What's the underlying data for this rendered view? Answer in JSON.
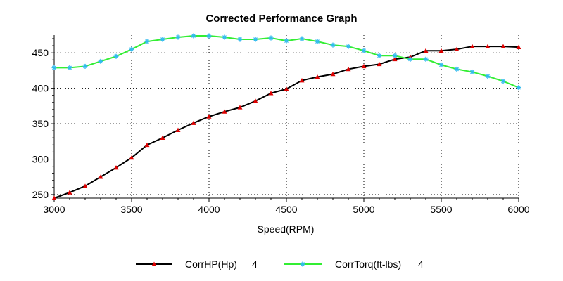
{
  "chart_data": {
    "type": "line",
    "title": "Corrected Performance Graph",
    "xlabel": "Speed(RPM)",
    "ylabel": "",
    "xlim": [
      3000,
      6000
    ],
    "ylim": [
      245,
      475
    ],
    "x_ticks": [
      3000,
      3500,
      4000,
      4500,
      5000,
      5500,
      6000
    ],
    "y_ticks": [
      250,
      300,
      350,
      400,
      450
    ],
    "grid": true,
    "legend_position": "bottom",
    "x": [
      3000,
      3100,
      3200,
      3300,
      3400,
      3500,
      3600,
      3700,
      3800,
      3900,
      4000,
      4100,
      4200,
      4300,
      4400,
      4500,
      4600,
      4700,
      4800,
      4900,
      5000,
      5100,
      5200,
      5300,
      5400,
      5500,
      5600,
      5700,
      5800,
      5900,
      6000
    ],
    "series": [
      {
        "name": "CorrHP(Hp)",
        "run": "4",
        "color": "#000000",
        "marker_color": "#dd0000",
        "marker": "triangle",
        "values": [
          245,
          253,
          262,
          275,
          288,
          302,
          320,
          330,
          341,
          351,
          360,
          367,
          373,
          382,
          393,
          399,
          411,
          416,
          420,
          427,
          431,
          434,
          441,
          444,
          453,
          453,
          455,
          459,
          459,
          459,
          458
        ]
      },
      {
        "name": "CorrTorq(ft-lbs)",
        "run": "4",
        "color": "#33ee33",
        "marker_color": "#33bbee",
        "marker": "star",
        "values": [
          429,
          429,
          431,
          438,
          445,
          455,
          466,
          469,
          472,
          474,
          474,
          472,
          469,
          469,
          471,
          467,
          470,
          466,
          461,
          459,
          453,
          446,
          446,
          441,
          441,
          433,
          427,
          423,
          417,
          410,
          401
        ]
      }
    ]
  }
}
